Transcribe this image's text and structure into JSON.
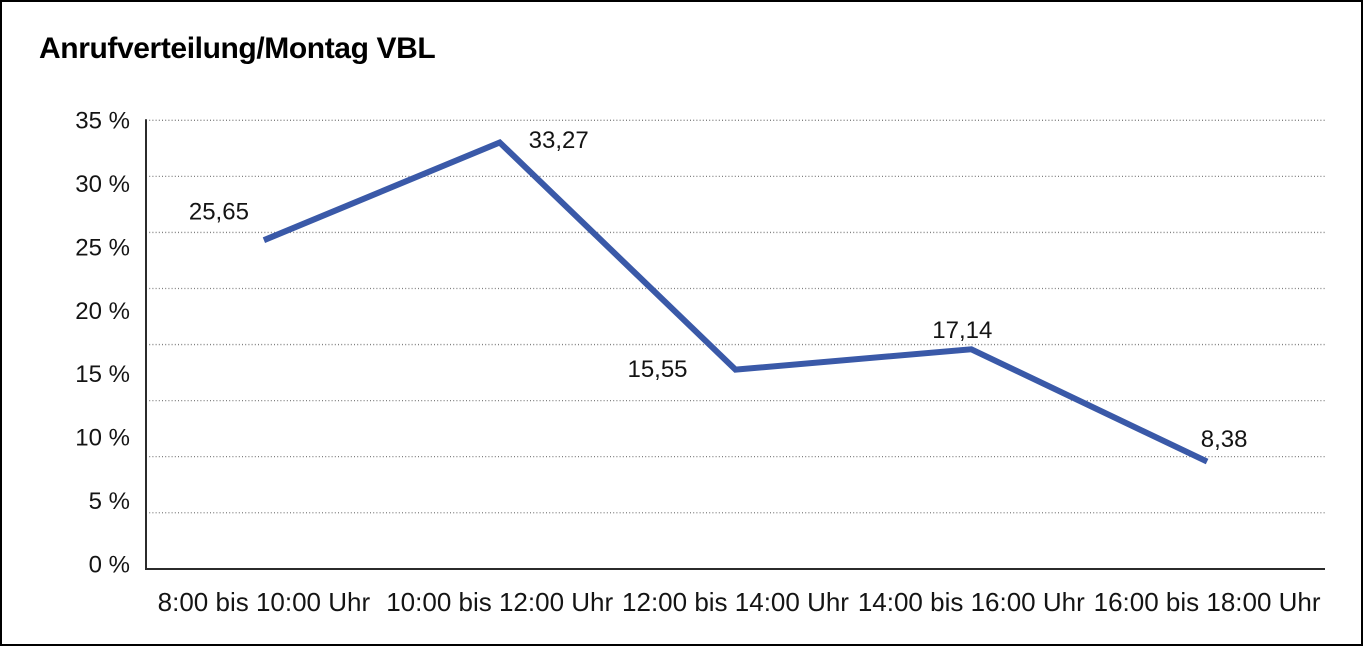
{
  "chart_data": {
    "type": "line",
    "title": "Anrufverteilung/Montag VBL",
    "categories": [
      "8:00 bis 10:00 Uhr",
      "10:00 bis 12:00 Uhr",
      "12:00 bis 14:00 Uhr",
      "14:00 bis 16:00 Uhr",
      "16:00 bis 18:00 Uhr"
    ],
    "values": [
      25.65,
      33.27,
      15.55,
      17.14,
      8.38
    ],
    "value_labels": [
      "25,65",
      "33,27",
      "15,55",
      "17,14",
      "8,38"
    ],
    "y_tick_labels": [
      "35 %",
      "30 %",
      "25 %",
      "20 %",
      "15 %",
      "10 %",
      "5 %",
      "0 %"
    ],
    "ylim": [
      0,
      35
    ],
    "y_tick_step": 5,
    "xlabel": "",
    "ylabel": "",
    "grid": "horizontal-dotted",
    "legend_position": "none",
    "decimal_separator": ",",
    "colors": {
      "line": "#3A59A8",
      "axis": "#2b2b2b",
      "gridline": "#7f7f7f",
      "text": "#141414"
    }
  }
}
